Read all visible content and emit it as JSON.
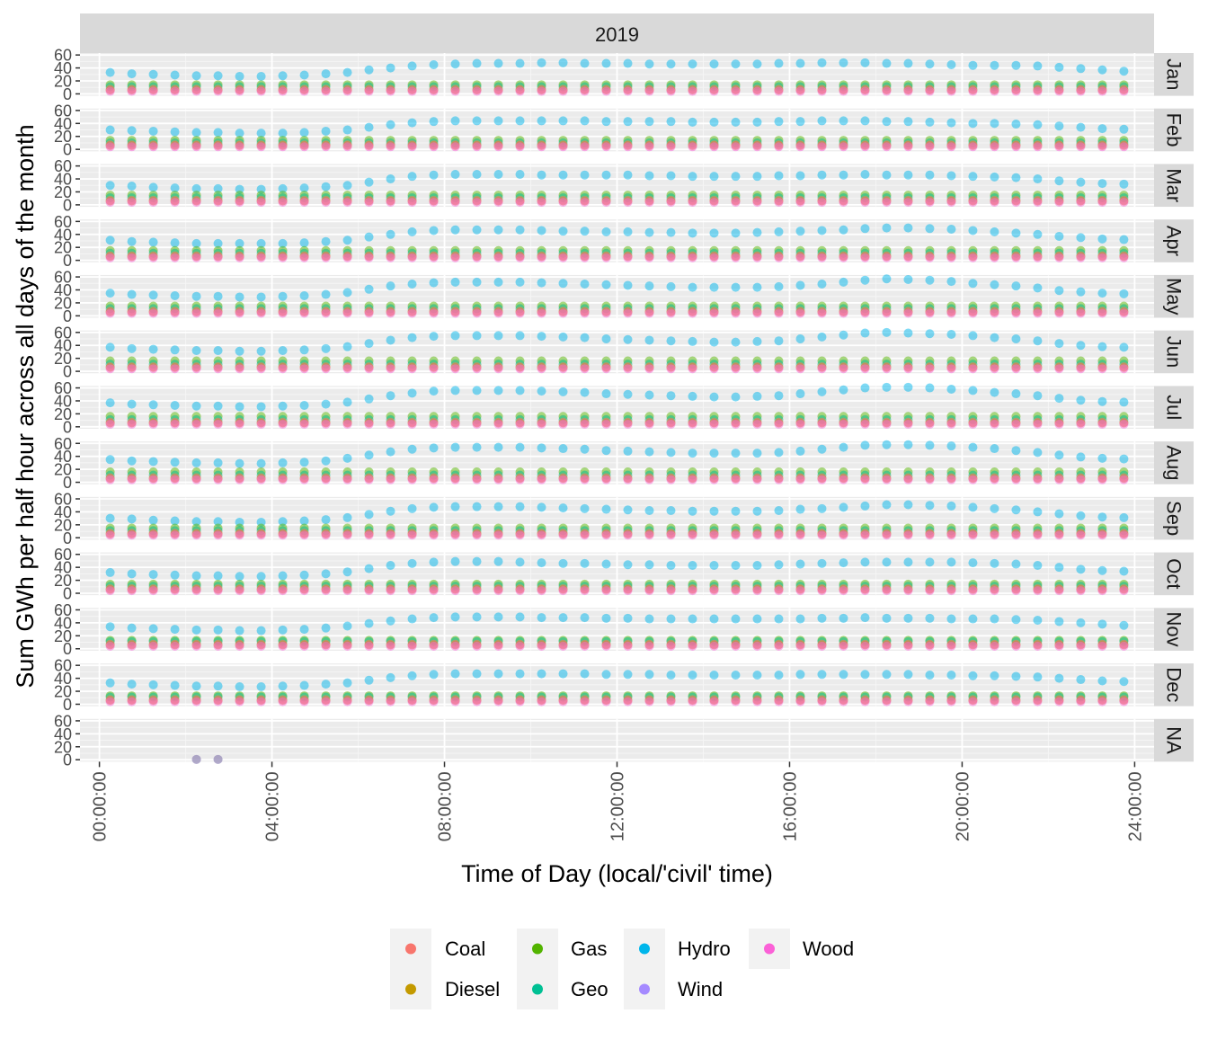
{
  "chart_data": {
    "type": "scatter",
    "facet_title": "2019",
    "xlabel": "Time of Day (local/'civil' time)",
    "ylabel": "Sum GWh per half hour across all days of the month",
    "x_unit": "hours",
    "xlim": [
      -0.45,
      24.45
    ],
    "ylim": [
      -3,
      63
    ],
    "x_ticks": [
      0,
      4,
      8,
      12,
      16,
      20,
      24
    ],
    "x_tick_labels": [
      "00:00:00",
      "04:00:00",
      "08:00:00",
      "12:00:00",
      "16:00:00",
      "20:00:00",
      "24:00:00"
    ],
    "y_ticks": [
      0,
      20,
      40,
      60
    ],
    "y_tick_labels": [
      "0",
      "20",
      "40",
      "60"
    ],
    "panels": [
      "Jan",
      "Feb",
      "Mar",
      "Apr",
      "May",
      "Jun",
      "Jul",
      "Aug",
      "Sep",
      "Oct",
      "Nov",
      "Dec",
      "NA"
    ],
    "legend": {
      "position": "bottom",
      "entries": [
        "Coal",
        "Diesel",
        "Gas",
        "Geo",
        "Hydro",
        "Wind",
        "Wood"
      ]
    },
    "colors": {
      "Coal": "#F8766D",
      "Diesel": "#C49A00",
      "Gas": "#53B400",
      "Geo": "#00C094",
      "Hydro": "#00B6EB",
      "Wind": "#A58AFF",
      "Wood": "#FB61D7"
    },
    "x": [
      0.25,
      0.75,
      1.25,
      1.75,
      2.25,
      2.75,
      3.25,
      3.75,
      4.25,
      4.75,
      5.25,
      5.75,
      6.25,
      6.75,
      7.25,
      7.75,
      8.25,
      8.75,
      9.25,
      9.75,
      10.25,
      10.75,
      11.25,
      11.75,
      12.25,
      12.75,
      13.25,
      13.75,
      14.25,
      14.75,
      15.25,
      15.75,
      16.25,
      16.75,
      17.25,
      17.75,
      18.25,
      18.75,
      19.25,
      19.75,
      20.25,
      20.75,
      21.25,
      21.75,
      22.25,
      22.75,
      23.25,
      23.75
    ],
    "series": [
      {
        "name": "Hydro",
        "by_panel": {
          "Jan": [
            33,
            31,
            30,
            29,
            28,
            28,
            27,
            27,
            28,
            29,
            31,
            33,
            37,
            40,
            43,
            45,
            46,
            47,
            47,
            47,
            48,
            48,
            47,
            47,
            47,
            46,
            46,
            46,
            46,
            46,
            46,
            47,
            47,
            48,
            48,
            48,
            47,
            47,
            46,
            45,
            44,
            44,
            44,
            43,
            41,
            39,
            37,
            35
          ],
          "Feb": [
            30,
            29,
            28,
            27,
            26,
            26,
            25,
            25,
            25,
            26,
            28,
            30,
            34,
            38,
            41,
            43,
            44,
            44,
            44,
            44,
            44,
            44,
            44,
            43,
            43,
            43,
            43,
            42,
            42,
            42,
            42,
            43,
            43,
            44,
            44,
            44,
            43,
            43,
            42,
            41,
            40,
            40,
            39,
            38,
            36,
            34,
            32,
            31
          ],
          "Mar": [
            30,
            29,
            27,
            26,
            25,
            25,
            24,
            24,
            25,
            26,
            28,
            30,
            35,
            40,
            44,
            46,
            47,
            47,
            47,
            47,
            46,
            46,
            46,
            46,
            46,
            45,
            45,
            44,
            44,
            44,
            44,
            45,
            45,
            46,
            46,
            47,
            46,
            46,
            46,
            45,
            44,
            43,
            42,
            40,
            37,
            35,
            33,
            32
          ],
          "Apr": [
            31,
            29,
            28,
            27,
            26,
            26,
            26,
            26,
            26,
            27,
            29,
            31,
            36,
            40,
            44,
            46,
            47,
            47,
            47,
            47,
            46,
            45,
            45,
            44,
            44,
            43,
            43,
            42,
            42,
            42,
            43,
            44,
            45,
            46,
            47,
            49,
            50,
            50,
            49,
            48,
            46,
            44,
            42,
            40,
            37,
            35,
            33,
            32
          ],
          "May": [
            35,
            33,
            32,
            31,
            30,
            30,
            29,
            29,
            30,
            31,
            33,
            36,
            41,
            46,
            49,
            51,
            52,
            52,
            52,
            52,
            51,
            50,
            49,
            48,
            47,
            46,
            45,
            44,
            44,
            44,
            44,
            45,
            47,
            49,
            52,
            55,
            57,
            56,
            55,
            53,
            50,
            48,
            46,
            43,
            39,
            37,
            35,
            34
          ],
          "Jun": [
            37,
            35,
            34,
            33,
            32,
            32,
            31,
            31,
            32,
            33,
            35,
            38,
            43,
            48,
            52,
            54,
            55,
            55,
            55,
            55,
            54,
            53,
            52,
            50,
            49,
            48,
            47,
            46,
            45,
            45,
            46,
            47,
            50,
            53,
            56,
            59,
            60,
            59,
            58,
            57,
            55,
            52,
            50,
            47,
            43,
            40,
            38,
            37
          ],
          "Jul": [
            37,
            35,
            34,
            33,
            32,
            32,
            31,
            31,
            32,
            33,
            35,
            38,
            43,
            48,
            52,
            55,
            56,
            56,
            56,
            56,
            55,
            54,
            53,
            51,
            50,
            49,
            48,
            47,
            46,
            46,
            47,
            48,
            51,
            54,
            57,
            60,
            61,
            61,
            60,
            58,
            56,
            53,
            51,
            48,
            44,
            41,
            39,
            38
          ],
          "Aug": [
            35,
            33,
            32,
            31,
            30,
            30,
            29,
            29,
            30,
            31,
            33,
            37,
            42,
            47,
            51,
            53,
            54,
            54,
            54,
            54,
            53,
            52,
            51,
            49,
            48,
            47,
            46,
            45,
            45,
            45,
            45,
            46,
            48,
            51,
            54,
            57,
            58,
            58,
            57,
            56,
            54,
            52,
            49,
            46,
            42,
            39,
            37,
            36
          ],
          "Sep": [
            30,
            29,
            27,
            26,
            25,
            25,
            24,
            24,
            25,
            26,
            28,
            31,
            36,
            41,
            45,
            47,
            48,
            48,
            48,
            48,
            47,
            46,
            45,
            44,
            43,
            42,
            42,
            41,
            41,
            41,
            41,
            42,
            44,
            45,
            47,
            49,
            51,
            51,
            50,
            49,
            47,
            45,
            43,
            40,
            37,
            34,
            32,
            31
          ],
          "Oct": [
            32,
            30,
            29,
            28,
            27,
            27,
            26,
            26,
            27,
            28,
            30,
            33,
            38,
            43,
            46,
            48,
            49,
            49,
            49,
            48,
            47,
            46,
            46,
            45,
            44,
            44,
            43,
            43,
            43,
            43,
            43,
            44,
            45,
            46,
            47,
            48,
            48,
            48,
            48,
            48,
            47,
            46,
            45,
            43,
            40,
            37,
            35,
            34
          ],
          "Nov": [
            34,
            32,
            31,
            30,
            29,
            29,
            28,
            28,
            29,
            30,
            32,
            35,
            39,
            43,
            46,
            48,
            49,
            49,
            49,
            49,
            48,
            48,
            48,
            47,
            47,
            46,
            46,
            46,
            46,
            46,
            46,
            46,
            46,
            47,
            47,
            48,
            47,
            47,
            47,
            46,
            46,
            46,
            45,
            44,
            42,
            40,
            38,
            36
          ],
          "Dec": [
            33,
            31,
            30,
            29,
            28,
            28,
            27,
            27,
            28,
            29,
            31,
            33,
            37,
            41,
            44,
            46,
            47,
            47,
            47,
            47,
            47,
            47,
            47,
            46,
            46,
            46,
            45,
            45,
            45,
            45,
            45,
            45,
            46,
            46,
            46,
            46,
            46,
            46,
            45,
            45,
            44,
            44,
            43,
            42,
            40,
            38,
            36,
            35
          ]
        }
      },
      {
        "name": "Gas",
        "monthly_level": {
          "Jan": 14,
          "Feb": 14,
          "Mar": 15,
          "Apr": 15,
          "May": 15,
          "Jun": 16,
          "Jul": 16,
          "Aug": 16,
          "Sep": 15,
          "Oct": 14,
          "Nov": 13,
          "Dec": 13
        },
        "NA": null
      },
      {
        "name": "Geo",
        "monthly_level": {
          "Jan": 11,
          "Feb": 10,
          "Mar": 11,
          "Apr": 11,
          "May": 11,
          "Jun": 11,
          "Jul": 11,
          "Aug": 11,
          "Sep": 11,
          "Oct": 11,
          "Nov": 11,
          "Dec": 11
        },
        "NA": null
      },
      {
        "name": "Coal",
        "monthly_level": {
          "Jan": 7,
          "Feb": 7,
          "Mar": 7,
          "Apr": 7,
          "May": 7,
          "Jun": 7,
          "Jul": 7,
          "Aug": 7,
          "Sep": 7,
          "Oct": 7,
          "Nov": 7,
          "Dec": 7
        },
        "NA": null
      },
      {
        "name": "Diesel",
        "monthly_level": {
          "Jan": 6,
          "Feb": 6,
          "Mar": 6,
          "Apr": 6,
          "May": 6,
          "Jun": 6,
          "Jul": 6,
          "Aug": 6,
          "Sep": 6,
          "Oct": 6,
          "Nov": 6,
          "Dec": 6
        },
        "NA": null
      },
      {
        "name": "Wood",
        "monthly_level": {
          "Jan": 4,
          "Feb": 4,
          "Mar": 4,
          "Apr": 4,
          "May": 4,
          "Jun": 4,
          "Jul": 4,
          "Aug": 4,
          "Sep": 4,
          "Oct": 4,
          "Nov": 4,
          "Dec": 4
        },
        "NA": null
      },
      {
        "name": "Wind",
        "monthly_level": {},
        "NA_points": [
          {
            "x": 2.25,
            "y": 0.5
          },
          {
            "x": 2.75,
            "y": 0.5
          }
        ]
      }
    ]
  }
}
